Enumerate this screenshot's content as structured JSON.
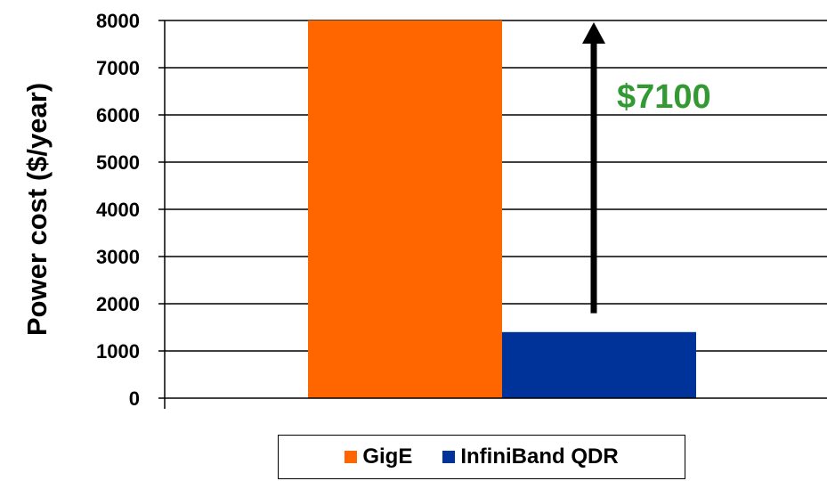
{
  "chart_data": {
    "type": "bar",
    "title": "",
    "xlabel": "",
    "ylabel": "Power  cost ($/year)",
    "ylim": [
      0,
      8000
    ],
    "yticks": [
      0,
      1000,
      2000,
      3000,
      4000,
      5000,
      6000,
      7000,
      8000
    ],
    "grid": true,
    "legend_position": "bottom",
    "series": [
      {
        "name": "GigE",
        "values": [
          8000
        ],
        "color": "#FF6600"
      },
      {
        "name": "InfiniBand QDR",
        "values": [
          1400
        ],
        "color": "#003399"
      }
    ],
    "annotations": [
      {
        "text": "$7100",
        "color": "#339933",
        "arrow": "up"
      }
    ]
  }
}
